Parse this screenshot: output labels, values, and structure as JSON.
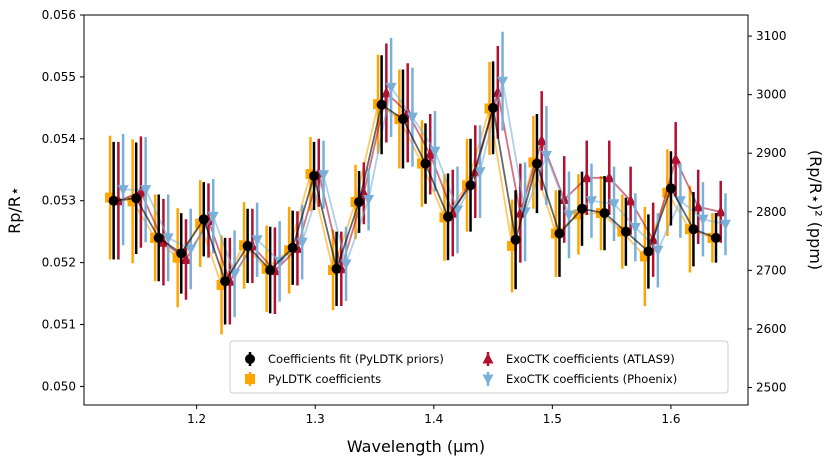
{
  "chart_data": {
    "type": "scatter",
    "xlabel": "Wavelength (μm)",
    "ylabel_left": "Rp/R⋆",
    "ylabel_right": "(Rp/R⋆)² (ppm)",
    "xlim": [
      1.105,
      1.665
    ],
    "ylim": [
      0.0497,
      0.056
    ],
    "ylim_right": [
      2470.09,
      3136.0
    ],
    "x_ticks": [
      1.2,
      1.3,
      1.4,
      1.5,
      1.6
    ],
    "x_tick_labels": [
      "1.2",
      "1.3",
      "1.4",
      "1.5",
      "1.6"
    ],
    "y_ticks": [
      0.05,
      0.051,
      0.052,
      0.053,
      0.054,
      0.055,
      0.056
    ],
    "y_tick_labels": [
      "0.050",
      "0.051",
      "0.052",
      "0.053",
      "0.054",
      "0.055",
      "0.056"
    ],
    "y2_ticks": [
      2500,
      2600,
      2700,
      2800,
      2900,
      3000,
      3100
    ],
    "y2_tick_labels": [
      "2500",
      "2600",
      "2700",
      "2800",
      "2900",
      "3000",
      "3100"
    ],
    "x": [
      1.13,
      1.149,
      1.168,
      1.187,
      1.206,
      1.224,
      1.243,
      1.262,
      1.281,
      1.299,
      1.318,
      1.337,
      1.356,
      1.374,
      1.393,
      1.412,
      1.431,
      1.45,
      1.469,
      1.487,
      1.506,
      1.525,
      1.544,
      1.562,
      1.581,
      1.6,
      1.619,
      1.638
    ],
    "legend_position": "lower-right",
    "series": [
      {
        "name": "Coefficients fit (PyLDTK priors)",
        "marker": "circle",
        "color": "#000000",
        "x_offset": 0.0,
        "values": [
          0.053,
          0.05304,
          0.0524,
          0.05215,
          0.0527,
          0.0517,
          0.05227,
          0.05188,
          0.05224,
          0.0534,
          0.0519,
          0.05298,
          0.05455,
          0.05432,
          0.0536,
          0.05274,
          0.05325,
          0.0545,
          0.05237,
          0.0536,
          0.05247,
          0.05287,
          0.0528,
          0.0525,
          0.05218,
          0.0532,
          0.05254,
          0.0524
        ],
        "errors": [
          0.00095,
          0.0009,
          0.0007,
          0.00065,
          0.0006,
          0.0007,
          0.0006,
          0.0007,
          0.0006,
          0.00055,
          0.0006,
          0.0005,
          0.0008,
          0.0008,
          0.00065,
          0.0007,
          0.00075,
          0.00075,
          0.0008,
          0.0008,
          0.0007,
          0.0006,
          0.0006,
          0.00055,
          0.0006,
          0.0006,
          0.0006,
          0.0004
        ]
      },
      {
        "name": "PyLDTK coefficients",
        "marker": "square",
        "color": "#ffa500",
        "x_offset": -0.003,
        "values": [
          0.05305,
          0.05299,
          0.0524,
          0.05208,
          0.05263,
          0.05164,
          0.05228,
          0.0519,
          0.0522,
          0.05343,
          0.05188,
          0.05298,
          0.05456,
          0.05432,
          0.0536,
          0.05273,
          0.05325,
          0.05449,
          0.05227,
          0.05362,
          0.05247,
          0.05278,
          0.0528,
          0.0525,
          0.0521,
          0.05313,
          0.05254,
          0.0524
        ],
        "errors": [
          0.001,
          0.001,
          0.0007,
          0.0008,
          0.0007,
          0.0008,
          0.0007,
          0.0007,
          0.0007,
          0.0006,
          0.00065,
          0.0006,
          0.0008,
          0.0008,
          0.0007,
          0.0007,
          0.00075,
          0.00075,
          0.00075,
          0.00075,
          0.0007,
          0.00065,
          0.0006,
          0.0006,
          0.0008,
          0.0007,
          0.0007,
          0.0004
        ]
      },
      {
        "name": "ExoCTK coefficients (ATLAS9)",
        "marker": "triangle-up",
        "color": "#b2102f",
        "x_offset": 0.004,
        "values": [
          0.053,
          0.05314,
          0.05233,
          0.05205,
          0.05268,
          0.0517,
          0.05227,
          0.05187,
          0.05223,
          0.05345,
          0.0519,
          0.05312,
          0.05474,
          0.05442,
          0.05375,
          0.0528,
          0.05347,
          0.05475,
          0.0528,
          0.05397,
          0.05302,
          0.05337,
          0.05337,
          0.053,
          0.05237,
          0.05367,
          0.0529,
          0.05282
        ],
        "errors": [
          0.00095,
          0.0009,
          0.0007,
          0.00065,
          0.0006,
          0.0007,
          0.0006,
          0.0007,
          0.0006,
          0.00055,
          0.0006,
          0.0005,
          0.0008,
          0.0008,
          0.00065,
          0.0007,
          0.00075,
          0.00075,
          0.0008,
          0.0008,
          0.0007,
          0.0006,
          0.0006,
          0.00055,
          0.0006,
          0.0006,
          0.0006,
          0.0005
        ]
      },
      {
        "name": "ExoCTK coefficients (Phoenix)",
        "marker": "triangle-down",
        "color": "#7ab0d8",
        "x_offset": 0.008,
        "values": [
          0.05318,
          0.05318,
          0.0524,
          0.05222,
          0.05275,
          0.05182,
          0.05237,
          0.05202,
          0.05233,
          0.05342,
          0.05198,
          0.05302,
          0.05483,
          0.05435,
          0.0538,
          0.05285,
          0.05347,
          0.05493,
          0.05282,
          0.05373,
          0.05277,
          0.053,
          0.05295,
          0.05257,
          0.0522,
          0.053,
          0.0527,
          0.05262
        ],
        "errors": [
          0.0009,
          0.00085,
          0.0007,
          0.00065,
          0.0006,
          0.0007,
          0.0006,
          0.00065,
          0.0006,
          0.00055,
          0.0006,
          0.0005,
          0.0008,
          0.0008,
          0.00065,
          0.0007,
          0.00075,
          0.0008,
          0.0008,
          0.0008,
          0.0007,
          0.0006,
          0.0006,
          0.00055,
          0.0006,
          0.0006,
          0.0006,
          0.0005
        ]
      }
    ]
  }
}
